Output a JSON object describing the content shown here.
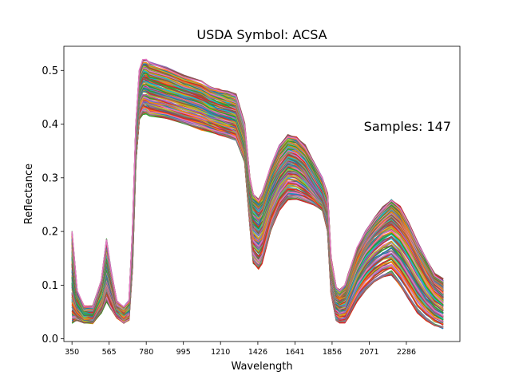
{
  "chart_data": {
    "type": "line",
    "title": "USDA Symbol: ACSA",
    "xlabel": "Wavelength",
    "ylabel": "Reflectance",
    "annotation": "Samples: 147",
    "sample_count": 147,
    "xlim": [
      303,
      2596
    ],
    "ylim": [
      -0.005,
      0.545
    ],
    "x_ticks": [
      350,
      565,
      780,
      995,
      1210,
      1426,
      1641,
      1856,
      2071,
      2286
    ],
    "x_tick_labels": [
      "350",
      "565",
      "780",
      "995",
      "1210",
      "1426",
      "1641",
      "1856",
      "2071",
      "2286"
    ],
    "y_ticks": [
      0.0,
      0.1,
      0.2,
      0.3,
      0.4,
      0.5
    ],
    "y_tick_labels": [
      "0.0",
      "0.1",
      "0.2",
      "0.3",
      "0.4",
      "0.5"
    ],
    "grid": false,
    "legend": "none",
    "colors": [
      "#1f77b4",
      "#ff7f0e",
      "#2ca02c",
      "#d62728",
      "#9467bd",
      "#8c564b",
      "#e377c2",
      "#7f7f7f",
      "#bcbd22",
      "#17becf"
    ],
    "wavelengths": [
      350,
      380,
      420,
      470,
      520,
      550,
      575,
      610,
      650,
      680,
      700,
      720,
      740,
      760,
      780,
      800,
      900,
      1000,
      1100,
      1150,
      1200,
      1250,
      1300,
      1350,
      1380,
      1400,
      1430,
      1450,
      1500,
      1550,
      1600,
      1650,
      1700,
      1750,
      1800,
      1830,
      1850,
      1880,
      1900,
      1930,
      1950,
      2000,
      2050,
      2100,
      2150,
      2200,
      2250,
      2300,
      2350,
      2400,
      2450,
      2500
    ],
    "reference_spectra": {
      "upper": [
        0.2,
        0.09,
        0.06,
        0.06,
        0.11,
        0.185,
        0.13,
        0.07,
        0.06,
        0.07,
        0.2,
        0.4,
        0.5,
        0.52,
        0.52,
        0.515,
        0.505,
        0.49,
        0.48,
        0.47,
        0.465,
        0.46,
        0.455,
        0.4,
        0.3,
        0.27,
        0.26,
        0.27,
        0.32,
        0.36,
        0.38,
        0.375,
        0.36,
        0.33,
        0.3,
        0.27,
        0.15,
        0.095,
        0.09,
        0.1,
        0.12,
        0.17,
        0.2,
        0.225,
        0.245,
        0.26,
        0.245,
        0.215,
        0.18,
        0.15,
        0.12,
        0.11
      ],
      "middle": [
        0.11,
        0.065,
        0.045,
        0.045,
        0.08,
        0.125,
        0.095,
        0.055,
        0.045,
        0.055,
        0.17,
        0.37,
        0.455,
        0.47,
        0.47,
        0.465,
        0.455,
        0.445,
        0.435,
        0.425,
        0.42,
        0.415,
        0.41,
        0.36,
        0.26,
        0.23,
        0.22,
        0.23,
        0.28,
        0.31,
        0.33,
        0.325,
        0.31,
        0.285,
        0.26,
        0.23,
        0.12,
        0.075,
        0.07,
        0.075,
        0.095,
        0.14,
        0.17,
        0.19,
        0.205,
        0.215,
        0.2,
        0.175,
        0.145,
        0.115,
        0.09,
        0.075
      ],
      "lower": [
        0.03,
        0.035,
        0.03,
        0.03,
        0.05,
        0.07,
        0.055,
        0.04,
        0.03,
        0.035,
        0.13,
        0.33,
        0.41,
        0.42,
        0.42,
        0.415,
        0.41,
        0.4,
        0.39,
        0.385,
        0.38,
        0.375,
        0.37,
        0.33,
        0.21,
        0.14,
        0.13,
        0.14,
        0.2,
        0.24,
        0.26,
        0.26,
        0.255,
        0.25,
        0.24,
        0.2,
        0.085,
        0.035,
        0.03,
        0.03,
        0.04,
        0.07,
        0.09,
        0.105,
        0.115,
        0.12,
        0.1,
        0.075,
        0.05,
        0.035,
        0.025,
        0.02
      ]
    }
  }
}
